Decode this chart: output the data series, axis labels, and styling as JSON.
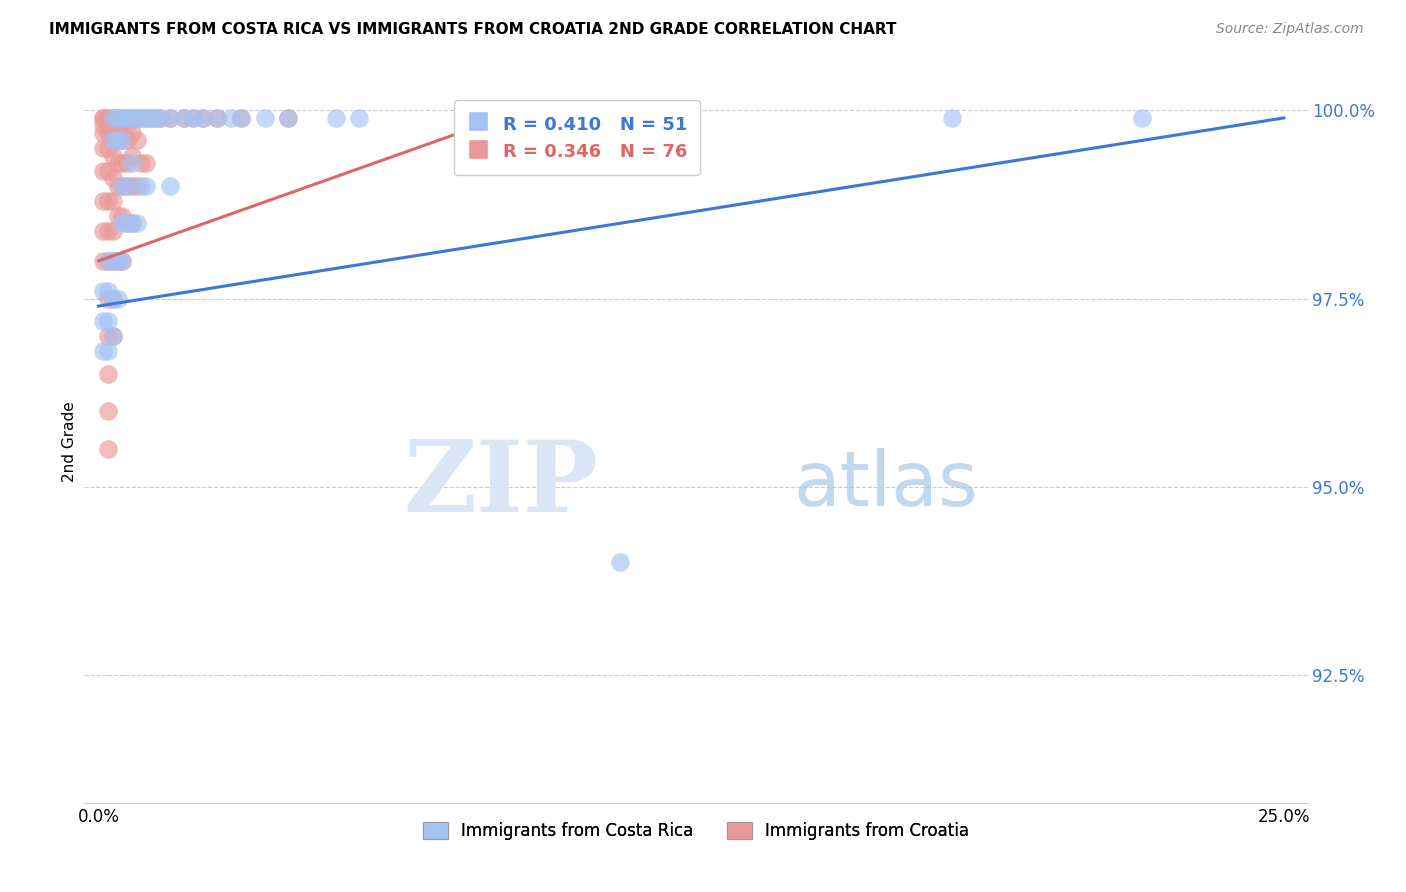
{
  "title": "IMMIGRANTS FROM COSTA RICA VS IMMIGRANTS FROM CROATIA 2ND GRADE CORRELATION CHART",
  "source": "Source: ZipAtlas.com",
  "xlabel_ticks": [
    "0.0%",
    "25.0%"
  ],
  "ylabel_ticks": [
    "92.5%",
    "95.0%",
    "97.5%",
    "100.0%"
  ],
  "xlabel_tick_vals": [
    0.0,
    0.25
  ],
  "ylabel_tick_vals": [
    0.925,
    0.95,
    0.975,
    1.0
  ],
  "xlim": [
    -0.003,
    0.255
  ],
  "ylim": [
    0.908,
    1.004
  ],
  "ylabel": "2nd Grade",
  "legend_blue_label": "Immigrants from Costa Rica",
  "legend_pink_label": "Immigrants from Croatia",
  "blue_R": 0.41,
  "blue_N": 51,
  "pink_R": 0.346,
  "pink_N": 76,
  "blue_color": "#a4c2f4",
  "pink_color": "#ea9999",
  "blue_line_color": "#3c78d8",
  "pink_line_color": "#e06666",
  "background_color": "#ffffff",
  "watermark_zip": "ZIP",
  "watermark_atlas": "atlas",
  "blue_scatter_x": [
    0.001,
    0.001,
    0.001,
    0.002,
    0.002,
    0.002,
    0.002,
    0.003,
    0.003,
    0.003,
    0.003,
    0.003,
    0.004,
    0.004,
    0.004,
    0.004,
    0.005,
    0.005,
    0.005,
    0.005,
    0.005,
    0.006,
    0.006,
    0.006,
    0.007,
    0.007,
    0.007,
    0.008,
    0.008,
    0.009,
    0.009,
    0.01,
    0.01,
    0.011,
    0.012,
    0.013,
    0.015,
    0.015,
    0.018,
    0.02,
    0.022,
    0.025,
    0.028,
    0.03,
    0.035,
    0.04,
    0.05,
    0.055,
    0.11,
    0.18,
    0.22
  ],
  "blue_scatter_y": [
    0.976,
    0.972,
    0.968,
    0.98,
    0.976,
    0.972,
    0.968,
    0.999,
    0.996,
    0.98,
    0.975,
    0.97,
    0.999,
    0.996,
    0.98,
    0.975,
    0.999,
    0.996,
    0.99,
    0.985,
    0.98,
    0.999,
    0.99,
    0.985,
    0.999,
    0.993,
    0.985,
    0.999,
    0.985,
    0.999,
    0.99,
    0.999,
    0.99,
    0.999,
    0.999,
    0.999,
    0.999,
    0.99,
    0.999,
    0.999,
    0.999,
    0.999,
    0.999,
    0.999,
    0.999,
    0.999,
    0.999,
    0.999,
    0.94,
    0.999,
    0.999
  ],
  "pink_scatter_x": [
    0.001,
    0.001,
    0.001,
    0.001,
    0.001,
    0.001,
    0.001,
    0.001,
    0.001,
    0.002,
    0.002,
    0.002,
    0.002,
    0.002,
    0.002,
    0.002,
    0.002,
    0.002,
    0.002,
    0.002,
    0.002,
    0.002,
    0.002,
    0.003,
    0.003,
    0.003,
    0.003,
    0.003,
    0.003,
    0.003,
    0.003,
    0.003,
    0.003,
    0.003,
    0.004,
    0.004,
    0.004,
    0.004,
    0.004,
    0.004,
    0.004,
    0.005,
    0.005,
    0.005,
    0.005,
    0.005,
    0.005,
    0.005,
    0.006,
    0.006,
    0.006,
    0.006,
    0.006,
    0.006,
    0.007,
    0.007,
    0.007,
    0.007,
    0.007,
    0.008,
    0.008,
    0.008,
    0.009,
    0.009,
    0.01,
    0.01,
    0.011,
    0.012,
    0.013,
    0.015,
    0.018,
    0.02,
    0.022,
    0.025,
    0.03,
    0.04
  ],
  "pink_scatter_y": [
    0.999,
    0.999,
    0.998,
    0.997,
    0.995,
    0.992,
    0.988,
    0.984,
    0.98,
    0.999,
    0.999,
    0.998,
    0.997,
    0.995,
    0.992,
    0.988,
    0.984,
    0.98,
    0.975,
    0.97,
    0.965,
    0.96,
    0.955,
    0.999,
    0.999,
    0.998,
    0.997,
    0.994,
    0.991,
    0.988,
    0.984,
    0.98,
    0.975,
    0.97,
    0.999,
    0.998,
    0.996,
    0.993,
    0.99,
    0.986,
    0.98,
    0.999,
    0.998,
    0.996,
    0.993,
    0.99,
    0.986,
    0.98,
    0.999,
    0.998,
    0.996,
    0.993,
    0.99,
    0.985,
    0.999,
    0.997,
    0.994,
    0.99,
    0.985,
    0.999,
    0.996,
    0.99,
    0.999,
    0.993,
    0.999,
    0.993,
    0.999,
    0.999,
    0.999,
    0.999,
    0.999,
    0.999,
    0.999,
    0.999,
    0.999,
    0.999
  ]
}
